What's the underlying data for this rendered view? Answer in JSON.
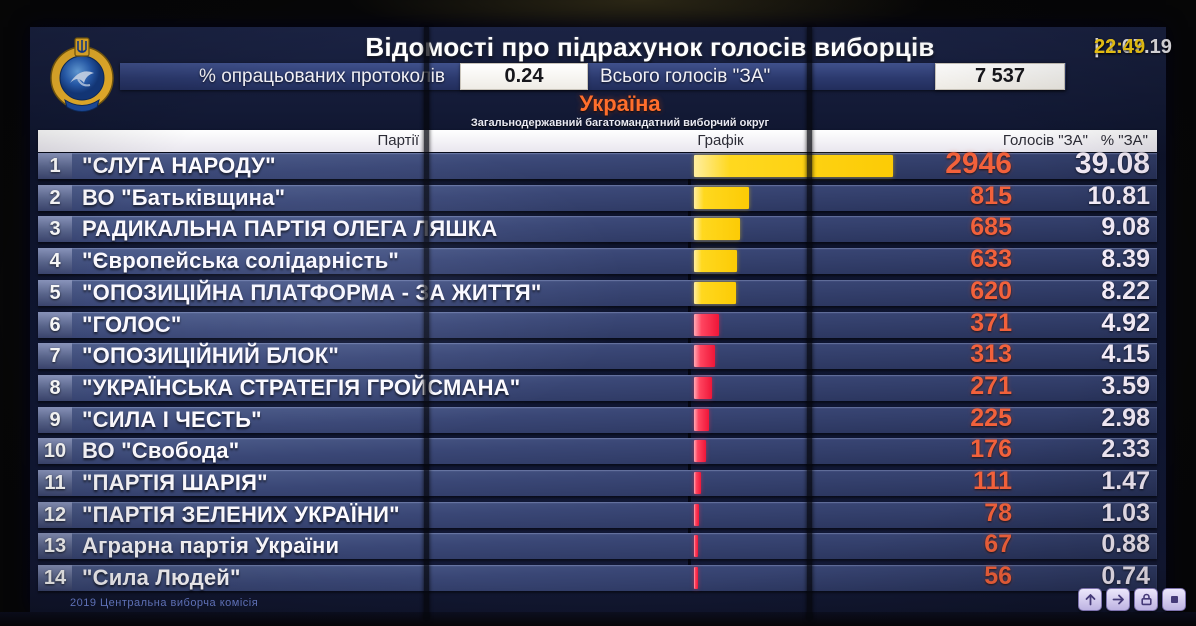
{
  "header": {
    "title": "Відомості про підрахунок голосів виборців",
    "date": "21.07.19",
    "date_separator": "|",
    "time": "22:49",
    "protocols_label": "% опрацьованих протоколів",
    "protocols_value": "0.24",
    "total_label": "Всього голосів \"ЗА\"",
    "total_value": "7 537"
  },
  "region": {
    "title": "Україна",
    "subtitle": "Загальнодержавний багатомандатний виборчий округ"
  },
  "table": {
    "columns": {
      "party": "Партії",
      "graph": "Графік",
      "votes": "Голосів \"ЗА\"",
      "percent": "% \"ЗА\""
    }
  },
  "rows": [
    {
      "num": "1",
      "party": "\"СЛУГА НАРОДУ\"",
      "votes": "2946",
      "percent": "39.08",
      "bar": "yellow"
    },
    {
      "num": "2",
      "party": "ВО \"Батьківщина\"",
      "votes": "815",
      "percent": "10.81",
      "bar": "yellow"
    },
    {
      "num": "3",
      "party": "РАДИКАЛЬНА ПАРТІЯ ОЛЕГА ЛЯШКА",
      "votes": "685",
      "percent": "9.08",
      "bar": "yellow"
    },
    {
      "num": "4",
      "party": "\"Європейська солідарність\"",
      "votes": "633",
      "percent": "8.39",
      "bar": "yellow"
    },
    {
      "num": "5",
      "party": "\"ОПОЗИЦІЙНА ПЛАТФОРМА - ЗА ЖИТТЯ\"",
      "votes": "620",
      "percent": "8.22",
      "bar": "yellow"
    },
    {
      "num": "6",
      "party": "\"ГОЛОС\"",
      "votes": "371",
      "percent": "4.92",
      "bar": "red"
    },
    {
      "num": "7",
      "party": "\"ОПОЗИЦІЙНИЙ БЛОК\"",
      "votes": "313",
      "percent": "4.15",
      "bar": "red"
    },
    {
      "num": "8",
      "party": "\"УКРАЇНСЬКА СТРАТЕГІЯ ГРОЙСМАНА\"",
      "votes": "271",
      "percent": "3.59",
      "bar": "red"
    },
    {
      "num": "9",
      "party": "\"СИЛА І ЧЕСТЬ\"",
      "votes": "225",
      "percent": "2.98",
      "bar": "red"
    },
    {
      "num": "10",
      "party": "ВО \"Свобода\"",
      "votes": "176",
      "percent": "2.33",
      "bar": "red"
    },
    {
      "num": "11",
      "party": "\"ПАРТІЯ ШАРІЯ\"",
      "votes": "111",
      "percent": "1.47",
      "bar": "red"
    },
    {
      "num": "12",
      "party": "\"ПАРТІЯ ЗЕЛЕНИХ УКРАЇНИ\"",
      "votes": "78",
      "percent": "1.03",
      "bar": "red"
    },
    {
      "num": "13",
      "party": "Аграрна партія України",
      "votes": "67",
      "percent": "0.88",
      "bar": "red"
    },
    {
      "num": "14",
      "party": "\"Сила Людей\"",
      "votes": "56",
      "percent": "0.74",
      "bar": "red"
    }
  ],
  "chart_data": {
    "type": "bar",
    "orientation": "horizontal",
    "title": "Відомості про підрахунок голосів виборців",
    "region": "Україна — Загальнодержавний багатомандатний виборчий округ",
    "timestamp": "21.07.19 22:49",
    "percent_protocols_processed": 0.24,
    "total_votes_for": 7537,
    "categories": [
      "\"СЛУГА НАРОДУ\"",
      "ВО \"Батьківщина\"",
      "РАДИКАЛЬНА ПАРТІЯ ОЛЕГА ЛЯШКА",
      "\"Європейська солідарність\"",
      "\"ОПОЗИЦІЙНА ПЛАТФОРМА - ЗА ЖИТТЯ\"",
      "\"ГОЛОС\"",
      "\"ОПОЗИЦІЙНИЙ БЛОК\"",
      "\"УКРАЇНСЬКА СТРАТЕГІЯ ГРОЙСМАНА\"",
      "\"СИЛА І ЧЕСТЬ\"",
      "ВО \"Свобода\"",
      "\"ПАРТІЯ ШАРІЯ\"",
      "\"ПАРТІЯ ЗЕЛЕНИХ УКРАЇНИ\"",
      "Аграрна партія України",
      "\"Сила Людей\""
    ],
    "series": [
      {
        "name": "Голосів \"ЗА\"",
        "values": [
          2946,
          815,
          685,
          633,
          620,
          371,
          313,
          271,
          225,
          176,
          111,
          78,
          67,
          56
        ]
      },
      {
        "name": "% \"ЗА\"",
        "values": [
          39.08,
          10.81,
          9.08,
          8.39,
          8.22,
          4.92,
          4.15,
          3.59,
          2.98,
          2.33,
          1.47,
          1.03,
          0.88,
          0.74
        ]
      }
    ],
    "bar_color_top5": "#ffd21e",
    "bar_color_rest": "#ff2e4d",
    "legend_position": "none",
    "grid": false
  },
  "footer": {
    "text": "2019 Центральна виборча комісія"
  },
  "controls": {
    "buttons": [
      {
        "icon": "arrow-up-icon"
      },
      {
        "icon": "arrow-right-icon"
      },
      {
        "icon": "lock-icon"
      },
      {
        "icon": "stop-square-icon"
      }
    ]
  },
  "colors": {
    "accent_yellow": "#ffd21e",
    "accent_red": "#ff2e4d",
    "votes_text": "#f2613b",
    "time_text": "#ffd313",
    "region_title": "#ff6e2c",
    "row_background": "#3a4776"
  }
}
